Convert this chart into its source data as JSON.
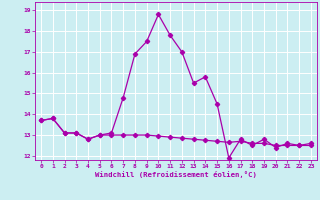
{
  "xlabel": "Windchill (Refroidissement éolien,°C)",
  "bg_color": "#cceef2",
  "line_color": "#aa00aa",
  "grid_color": "#ffffff",
  "xlim": [
    -0.5,
    23.5
  ],
  "ylim": [
    11.8,
    19.4
  ],
  "yticks": [
    12,
    13,
    14,
    15,
    16,
    17,
    18,
    19
  ],
  "xticks": [
    0,
    1,
    2,
    3,
    4,
    5,
    6,
    7,
    8,
    9,
    10,
    11,
    12,
    13,
    14,
    15,
    16,
    17,
    18,
    19,
    20,
    21,
    22,
    23
  ],
  "series1": [
    13.7,
    13.8,
    13.1,
    13.1,
    12.8,
    13.0,
    13.1,
    14.8,
    16.9,
    17.5,
    18.8,
    17.8,
    17.0,
    15.5,
    15.8,
    14.5,
    11.9,
    12.8,
    12.5,
    12.8,
    12.4,
    12.6,
    12.5,
    12.6
  ],
  "series2": [
    13.7,
    13.8,
    13.1,
    13.1,
    12.8,
    13.0,
    13.0,
    13.0,
    13.0,
    13.0,
    12.95,
    12.9,
    12.85,
    12.8,
    12.75,
    12.7,
    12.65,
    12.7,
    12.6,
    12.6,
    12.5,
    12.5,
    12.5,
    12.5
  ]
}
